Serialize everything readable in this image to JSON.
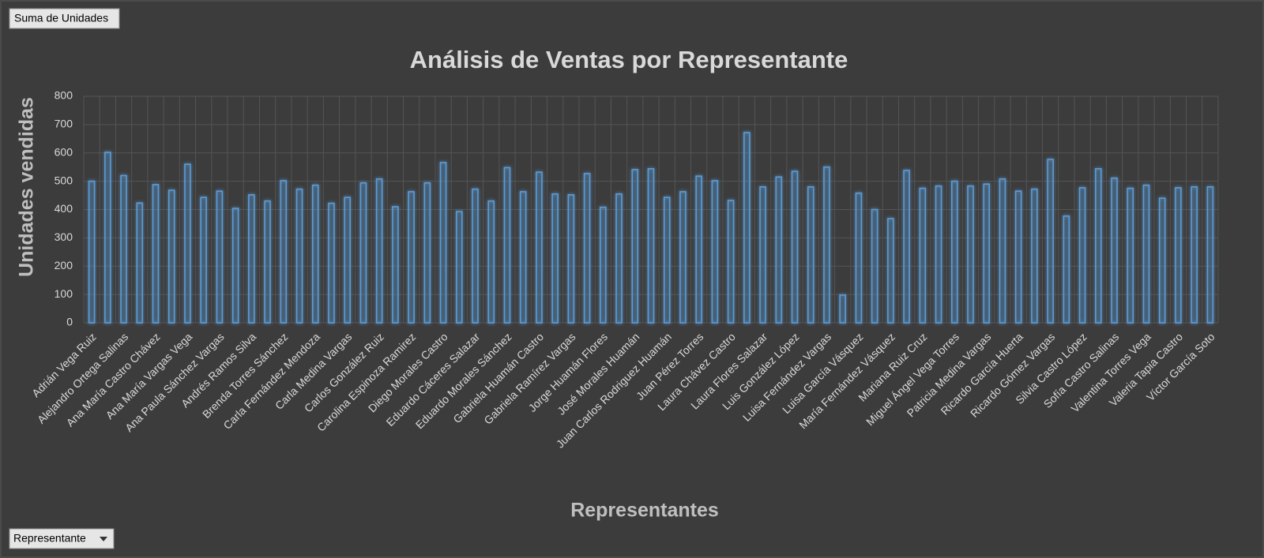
{
  "ui": {
    "values_button": "Suma de Unidades",
    "field_button": "Representante"
  },
  "chart_data": {
    "type": "bar",
    "title": "Análisis de Ventas por Representante",
    "x_label": "Representantes",
    "y_label": "Unidades vendidas",
    "color": "#5b9bd5",
    "grid": true,
    "ylim": [
      0,
      800
    ],
    "yticks": [
      0,
      100,
      200,
      300,
      400,
      500,
      600,
      700,
      800
    ],
    "categories": [
      "Adrián Vega Ruiz",
      null,
      "Alejandro Ortega Salinas",
      null,
      "Ana María Castro Chávez",
      null,
      "Ana María Vargas Vega",
      null,
      "Ana Paula Sánchez Vargas",
      null,
      "Andrés Ramos Silva",
      null,
      "Brenda Torres Sánchez",
      null,
      "Carla Fernández Mendoza",
      null,
      "Carla Medina Vargas",
      null,
      "Carlos González Ruiz",
      null,
      "Carolina Espinoza Ramirez",
      null,
      "Diego Morales Castro",
      null,
      "Eduardo Cáceres Salazar",
      null,
      "Eduardo Morales Sánchez",
      null,
      "Gabriela Huamán Castro",
      null,
      "Gabriela Ramírez Vargas",
      null,
      "Jorge Huamán Flores",
      null,
      "José Morales Huamán",
      null,
      "Juan Carlos Rodriguez Huamán",
      null,
      "Juan Pérez Torres",
      null,
      "Laura Chávez Castro",
      null,
      "Laura Flores Salazar",
      null,
      "Luis González López",
      null,
      "Luisa Fernández Vargas",
      null,
      "Luisa García Vásquez",
      null,
      "María Fernández Vásquez",
      null,
      "Mariana Ruiz Cruz",
      null,
      "Miguel Ángel Vega Torres",
      null,
      "Patricia Medina Vargas",
      null,
      "Ricardo García Huerta",
      null,
      "Ricardo Gómez Vargas",
      null,
      "Silvia Castro López",
      null,
      "Sofía Castro Salinas",
      null,
      "Valentina Torres Vega",
      null,
      "Valeria Tapia Castro",
      null,
      "Víctor García Soto"
    ],
    "values": [
      500,
      602,
      520,
      423,
      488,
      468,
      560,
      443,
      465,
      404,
      452,
      430,
      502,
      472,
      486,
      422,
      443,
      494,
      508,
      410,
      463,
      494,
      566,
      393,
      472,
      430,
      548,
      463,
      532,
      455,
      452,
      527,
      408,
      455,
      541,
      544,
      443,
      463,
      518,
      502,
      432,
      672,
      480,
      515,
      535,
      480,
      550,
      98,
      458,
      400,
      368,
      538,
      475,
      483,
      500,
      483,
      490,
      508,
      465,
      472,
      577,
      377,
      477,
      544,
      511,
      475,
      486,
      440,
      477,
      480,
      480
    ]
  }
}
